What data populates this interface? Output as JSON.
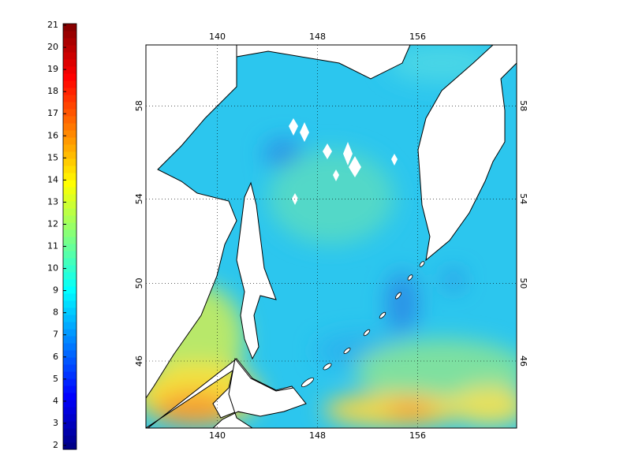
{
  "colorbar": {
    "lim": [
      2,
      21
    ],
    "ticks": [
      2,
      3,
      4,
      5,
      6,
      7,
      8,
      9,
      10,
      11,
      12,
      13,
      14,
      15,
      16,
      17,
      18,
      19,
      20,
      21
    ]
  },
  "map": {
    "xlim": [
      134.3,
      163.9
    ],
    "ylim": [
      42.3,
      60.4
    ],
    "xticks": [
      140,
      148,
      156
    ],
    "yticks": [
      46,
      50,
      54,
      58
    ]
  }
}
